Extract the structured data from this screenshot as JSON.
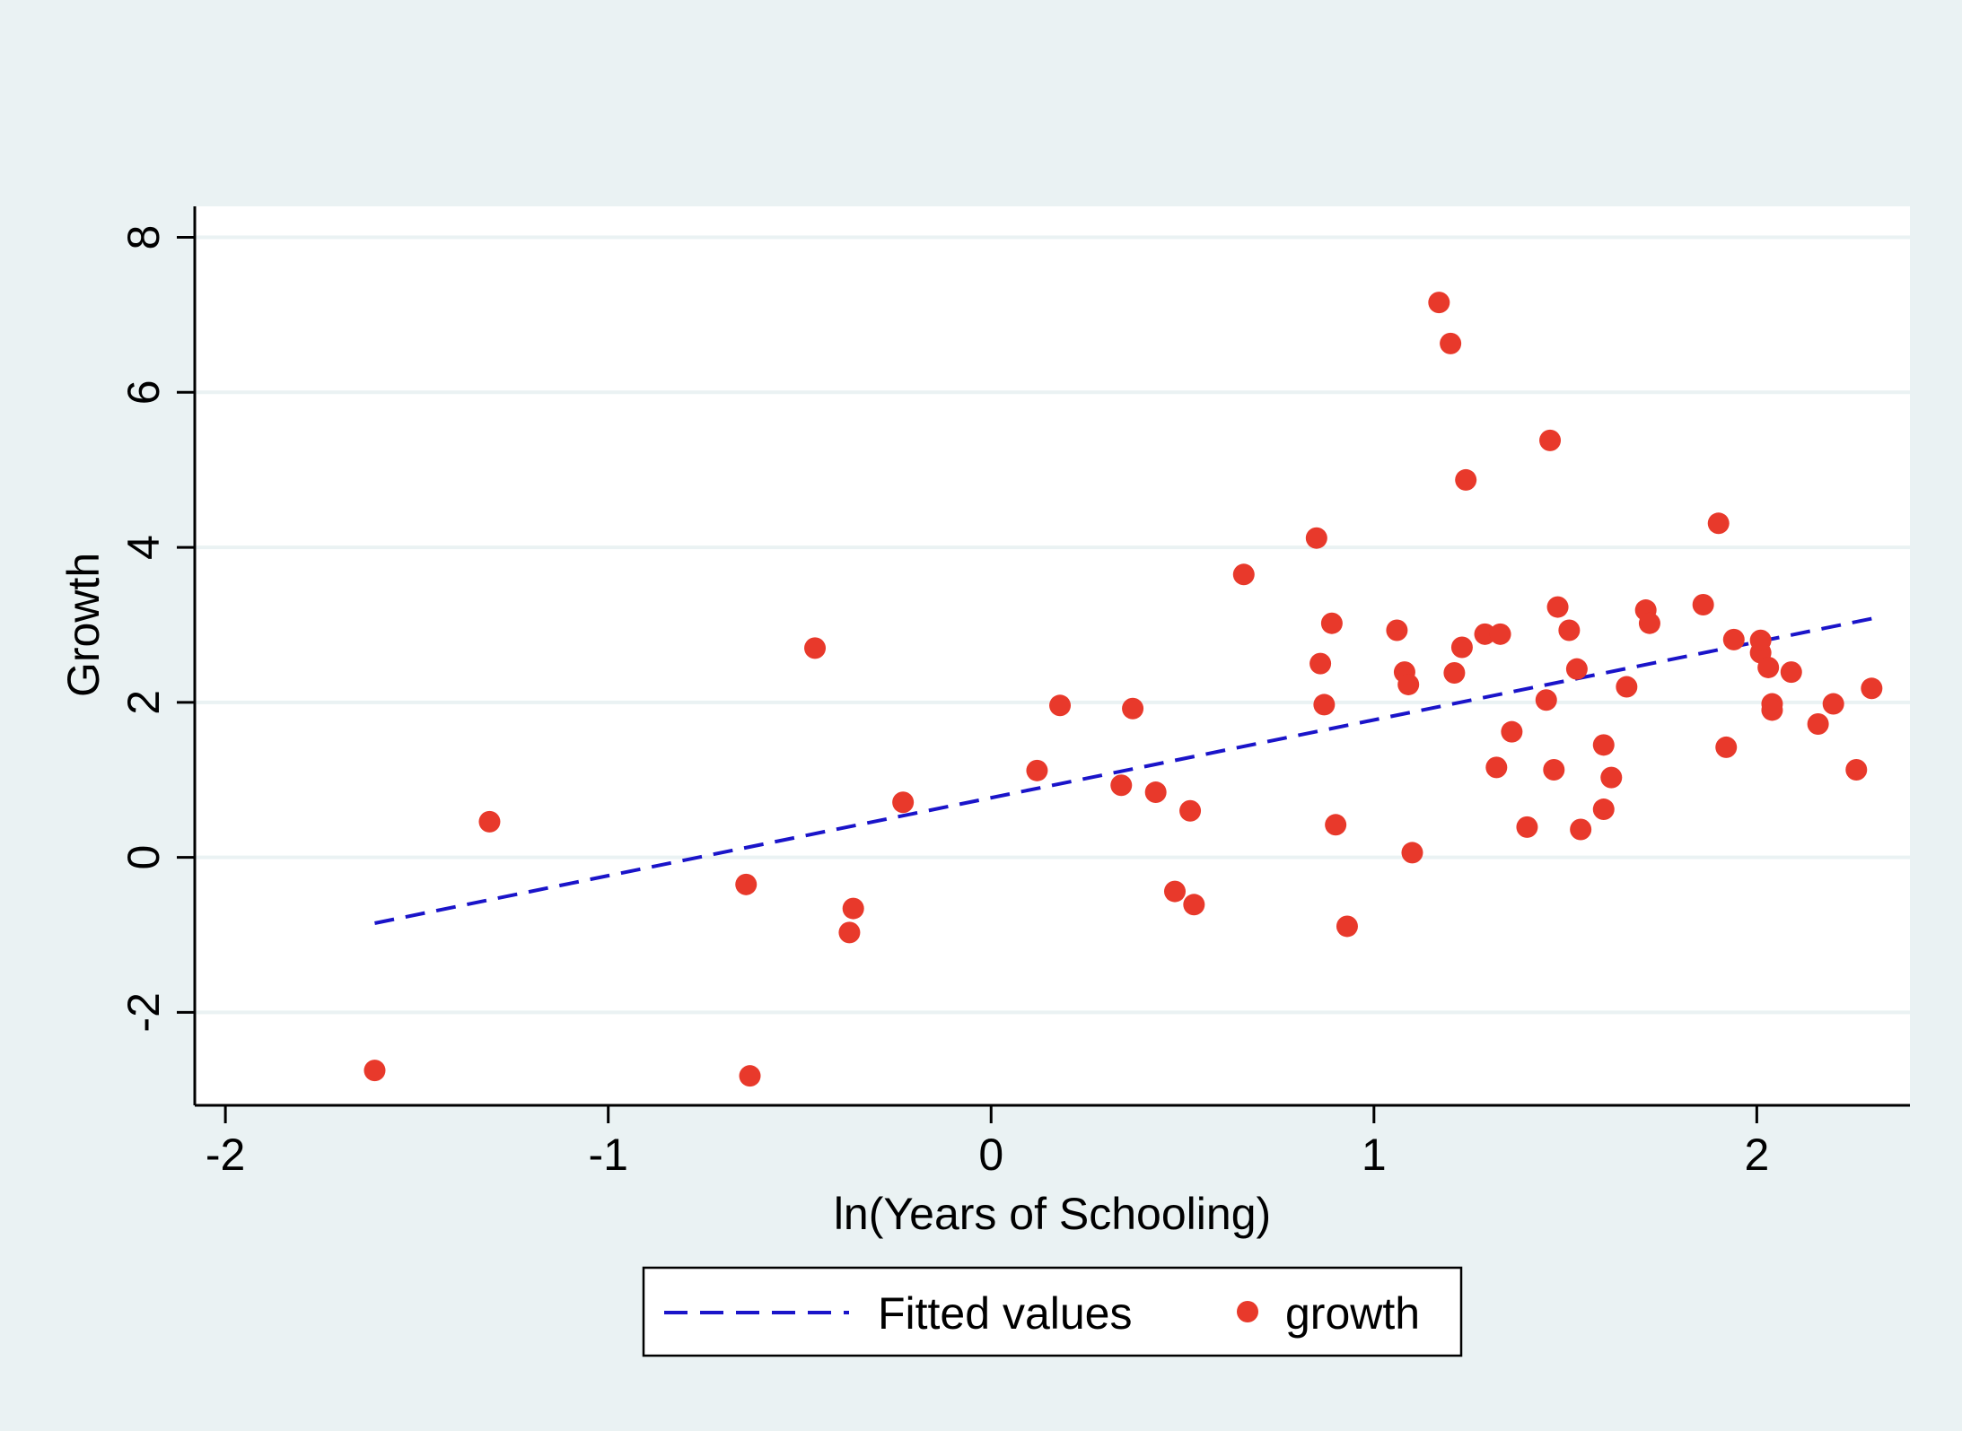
{
  "chart_data": {
    "type": "scatter",
    "title": "",
    "xlabel": "ln(Years of Schooling)",
    "ylabel": "Growth",
    "xlim": [
      -2.08,
      2.4
    ],
    "ylim": [
      -3.2,
      8.4
    ],
    "xticks": [
      -2,
      -1,
      0,
      1,
      2
    ],
    "yticks": [
      -2,
      0,
      2,
      4,
      6,
      8
    ],
    "xtick_labels": [
      "-2",
      "-1",
      "0",
      "1",
      "2"
    ],
    "ytick_labels": [
      "-2",
      "0",
      "2",
      "4",
      "6",
      "8"
    ],
    "grid": "horizontal",
    "legend_position": "bottom",
    "colors": {
      "background": "#eaf2f3",
      "plot_area": "#ffffff",
      "gridline": "#eaf2f3",
      "scatter": "#e8392b",
      "fitted_line": "#1a14c9",
      "axis": "#000000"
    },
    "series": [
      {
        "name": "Fitted values",
        "kind": "line",
        "style": "dashed",
        "x": [
          -1.61,
          2.3
        ],
        "y": [
          -0.85,
          3.08
        ]
      },
      {
        "name": "growth",
        "kind": "scatter",
        "x": [
          -1.61,
          -1.31,
          -0.64,
          -0.63,
          -0.46,
          -0.37,
          -0.36,
          -0.23,
          0.12,
          0.18,
          0.34,
          0.37,
          0.43,
          0.48,
          0.52,
          0.53,
          0.66,
          0.85,
          0.86,
          0.87,
          0.89,
          0.9,
          0.93,
          1.06,
          1.08,
          1.09,
          1.1,
          1.17,
          1.2,
          1.21,
          1.23,
          1.24,
          1.29,
          1.32,
          1.33,
          1.36,
          1.4,
          1.45,
          1.46,
          1.47,
          1.48,
          1.51,
          1.53,
          1.54,
          1.6,
          1.6,
          1.62,
          1.66,
          1.71,
          1.72,
          1.86,
          1.9,
          1.92,
          1.94,
          2.01,
          2.01,
          2.03,
          2.04,
          2.04,
          2.09,
          2.16,
          2.2,
          2.26,
          2.3
        ],
        "y": [
          -2.75,
          0.46,
          -0.35,
          -2.82,
          2.7,
          -0.97,
          -0.66,
          0.71,
          1.12,
          1.96,
          0.93,
          1.92,
          0.84,
          -0.44,
          0.6,
          -0.61,
          3.65,
          4.12,
          2.5,
          1.97,
          3.02,
          0.42,
          -0.89,
          2.93,
          2.39,
          2.23,
          0.06,
          7.16,
          6.63,
          2.38,
          2.71,
          4.87,
          2.88,
          1.16,
          2.88,
          1.62,
          0.39,
          2.03,
          5.38,
          1.13,
          3.23,
          2.93,
          2.43,
          0.36,
          1.45,
          0.62,
          1.03,
          2.2,
          3.19,
          3.02,
          3.26,
          4.31,
          1.42,
          2.81,
          2.64,
          2.8,
          2.45,
          1.98,
          1.9,
          2.39,
          1.72,
          1.98,
          1.13,
          2.18
        ]
      }
    ]
  }
}
